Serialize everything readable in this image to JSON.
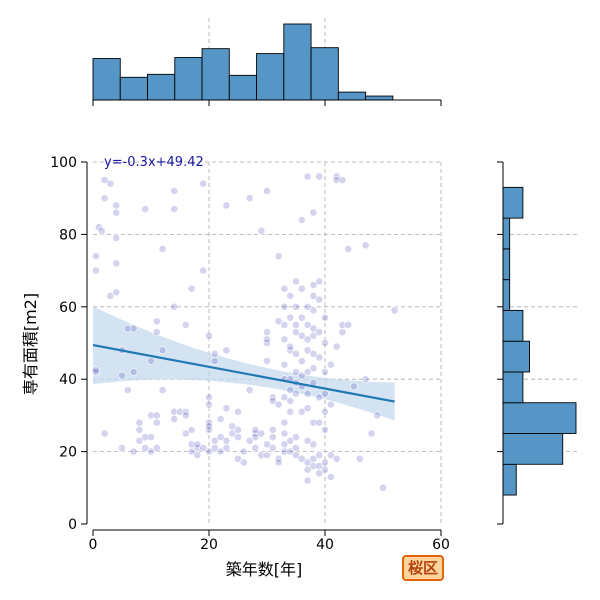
{
  "chart_data": {
    "type": "scatter",
    "xlabel": "築年数[年]",
    "ylabel": "専有面積[m2]",
    "xlim": [
      0,
      60
    ],
    "ylim": [
      0,
      100
    ],
    "xticks": [
      "0",
      "20",
      "40",
      "60"
    ],
    "yticks": [
      "0",
      "20",
      "40",
      "60",
      "80",
      "100"
    ],
    "grid": true,
    "regression": {
      "label": "y=-0.3x+49.42",
      "slope": -0.3,
      "intercept": 49.42,
      "x_range": [
        0,
        52
      ]
    },
    "colors": {
      "points": "#3a3ab8",
      "line": "#1f77b4",
      "band": "#c6d9ec",
      "hist": "#5596c7"
    },
    "x_hist": {
      "bin_edges": [
        0,
        4.7,
        9.4,
        14.1,
        18.8,
        23.5,
        28.2,
        32.9,
        37.6,
        42.3,
        47.0,
        51.7
      ],
      "counts": [
        42,
        23,
        26,
        43,
        52,
        25,
        47,
        77,
        53,
        8,
        4
      ]
    },
    "y_hist": {
      "bin_edges": [
        8,
        16.5,
        25,
        33.5,
        42,
        50.5,
        59,
        67.5,
        76,
        84.5,
        93,
        101.5
      ],
      "counts": [
        2,
        9,
        11,
        3,
        4,
        3,
        1,
        1,
        1,
        3,
        0
      ]
    },
    "points": [
      [
        0.5,
        42
      ],
      [
        0.5,
        42.5
      ],
      [
        0.5,
        70
      ],
      [
        0.5,
        74
      ],
      [
        1,
        82
      ],
      [
        1.5,
        81
      ],
      [
        2,
        25
      ],
      [
        2,
        90
      ],
      [
        2,
        95
      ],
      [
        3,
        94
      ],
      [
        3,
        63
      ],
      [
        4,
        64
      ],
      [
        4,
        72
      ],
      [
        4,
        79
      ],
      [
        4,
        86
      ],
      [
        4,
        88
      ],
      [
        5,
        48
      ],
      [
        5,
        41
      ],
      [
        5,
        21
      ],
      [
        6,
        54
      ],
      [
        6,
        37
      ],
      [
        7,
        54
      ],
      [
        7,
        20
      ],
      [
        7,
        42
      ],
      [
        8,
        28
      ],
      [
        8,
        26
      ],
      [
        8,
        23
      ],
      [
        9,
        24
      ],
      [
        9,
        21
      ],
      [
        9,
        87
      ],
      [
        10,
        30
      ],
      [
        10,
        24
      ],
      [
        10,
        20
      ],
      [
        10,
        45
      ],
      [
        11,
        56
      ],
      [
        11,
        53
      ],
      [
        11,
        28
      ],
      [
        11,
        21
      ],
      [
        11,
        30
      ],
      [
        12,
        76
      ],
      [
        12,
        37
      ],
      [
        12,
        48
      ],
      [
        14,
        29
      ],
      [
        14,
        31
      ],
      [
        14,
        60
      ],
      [
        14,
        87
      ],
      [
        14,
        92
      ],
      [
        15,
        31
      ],
      [
        16,
        25
      ],
      [
        16,
        31
      ],
      [
        16,
        55
      ],
      [
        16,
        30
      ],
      [
        17,
        22
      ],
      [
        17,
        20
      ],
      [
        17,
        26
      ],
      [
        17,
        65
      ],
      [
        18,
        21
      ],
      [
        18,
        22
      ],
      [
        18,
        19
      ],
      [
        19,
        21
      ],
      [
        19,
        70
      ],
      [
        19,
        94
      ],
      [
        20,
        52
      ],
      [
        20,
        20
      ],
      [
        20,
        35
      ],
      [
        20,
        28
      ],
      [
        20,
        26
      ],
      [
        20,
        27
      ],
      [
        20,
        33
      ],
      [
        21,
        45
      ],
      [
        21,
        47
      ],
      [
        21,
        23
      ],
      [
        21,
        21
      ],
      [
        22,
        20
      ],
      [
        22,
        29
      ],
      [
        22,
        24
      ],
      [
        23,
        88
      ],
      [
        23,
        48
      ],
      [
        23,
        32
      ],
      [
        23,
        23
      ],
      [
        23,
        21
      ],
      [
        24,
        25
      ],
      [
        24,
        27
      ],
      [
        25,
        18
      ],
      [
        25,
        31
      ],
      [
        25,
        26
      ],
      [
        25,
        24
      ],
      [
        26,
        20
      ],
      [
        26,
        17
      ],
      [
        27,
        23
      ],
      [
        27,
        90
      ],
      [
        27,
        37
      ],
      [
        28,
        25
      ],
      [
        28,
        24
      ],
      [
        28,
        21
      ],
      [
        28,
        26
      ],
      [
        29,
        81
      ],
      [
        29,
        25
      ],
      [
        29,
        19
      ],
      [
        30,
        92
      ],
      [
        30,
        22
      ],
      [
        30,
        19
      ],
      [
        30,
        45
      ],
      [
        30,
        50
      ],
      [
        30,
        51
      ],
      [
        30,
        53
      ],
      [
        31,
        35
      ],
      [
        31,
        34
      ],
      [
        31,
        26
      ],
      [
        31,
        24
      ],
      [
        31,
        21
      ],
      [
        32,
        33
      ],
      [
        32,
        74
      ],
      [
        32,
        56
      ],
      [
        32,
        18
      ],
      [
        32,
        17
      ],
      [
        33,
        65
      ],
      [
        33,
        60
      ],
      [
        33,
        55
      ],
      [
        33,
        51
      ],
      [
        33,
        44
      ],
      [
        33,
        40
      ],
      [
        33,
        35
      ],
      [
        33,
        28
      ],
      [
        33,
        25
      ],
      [
        33,
        22
      ],
      [
        33,
        20
      ],
      [
        34,
        57
      ],
      [
        34,
        63
      ],
      [
        34,
        48
      ],
      [
        34,
        49
      ],
      [
        34,
        40
      ],
      [
        34,
        37
      ],
      [
        34,
        34
      ],
      [
        34,
        31
      ],
      [
        34,
        23
      ],
      [
        34,
        20
      ],
      [
        35,
        67
      ],
      [
        35,
        60
      ],
      [
        35,
        55
      ],
      [
        35,
        53
      ],
      [
        35,
        47
      ],
      [
        35,
        42
      ],
      [
        35,
        39
      ],
      [
        35,
        36
      ],
      [
        35,
        24
      ],
      [
        35,
        21
      ],
      [
        35,
        19
      ],
      [
        36,
        84
      ],
      [
        36,
        65
      ],
      [
        36,
        57
      ],
      [
        36,
        52
      ],
      [
        36,
        45
      ],
      [
        36,
        41
      ],
      [
        36,
        38
      ],
      [
        36,
        31
      ],
      [
        36,
        18
      ],
      [
        37,
        96
      ],
      [
        37,
        60
      ],
      [
        37,
        55
      ],
      [
        37,
        51
      ],
      [
        37,
        48
      ],
      [
        37,
        42
      ],
      [
        37,
        36
      ],
      [
        37,
        32
      ],
      [
        37,
        23
      ],
      [
        37,
        17
      ],
      [
        37,
        15
      ],
      [
        37,
        12
      ],
      [
        38,
        86
      ],
      [
        38,
        66
      ],
      [
        38,
        63
      ],
      [
        38,
        59
      ],
      [
        38,
        54
      ],
      [
        38,
        52
      ],
      [
        38,
        47
      ],
      [
        38,
        43
      ],
      [
        38,
        39
      ],
      [
        38,
        28
      ],
      [
        38,
        22
      ],
      [
        38,
        18
      ],
      [
        38,
        16
      ],
      [
        39,
        96
      ],
      [
        39,
        67
      ],
      [
        39,
        62
      ],
      [
        39,
        53
      ],
      [
        39,
        46
      ],
      [
        39,
        35
      ],
      [
        39,
        28
      ],
      [
        39,
        19
      ],
      [
        39,
        16
      ],
      [
        39,
        14
      ],
      [
        40,
        57
      ],
      [
        40,
        50
      ],
      [
        40,
        42
      ],
      [
        40,
        36
      ],
      [
        40,
        31
      ],
      [
        40,
        26
      ],
      [
        40,
        17
      ],
      [
        40,
        15
      ],
      [
        41,
        44
      ],
      [
        41,
        33
      ],
      [
        41,
        19
      ],
      [
        41,
        13
      ],
      [
        42,
        96
      ],
      [
        42,
        95
      ],
      [
        42,
        49
      ],
      [
        42,
        18
      ],
      [
        43,
        95
      ],
      [
        43,
        55
      ],
      [
        43,
        53
      ],
      [
        44,
        55
      ],
      [
        44,
        76
      ],
      [
        45,
        38
      ],
      [
        46,
        18
      ],
      [
        47,
        77
      ],
      [
        47,
        40
      ],
      [
        48,
        25
      ],
      [
        49,
        30
      ],
      [
        50,
        10
      ],
      [
        52,
        59
      ]
    ]
  }
}
